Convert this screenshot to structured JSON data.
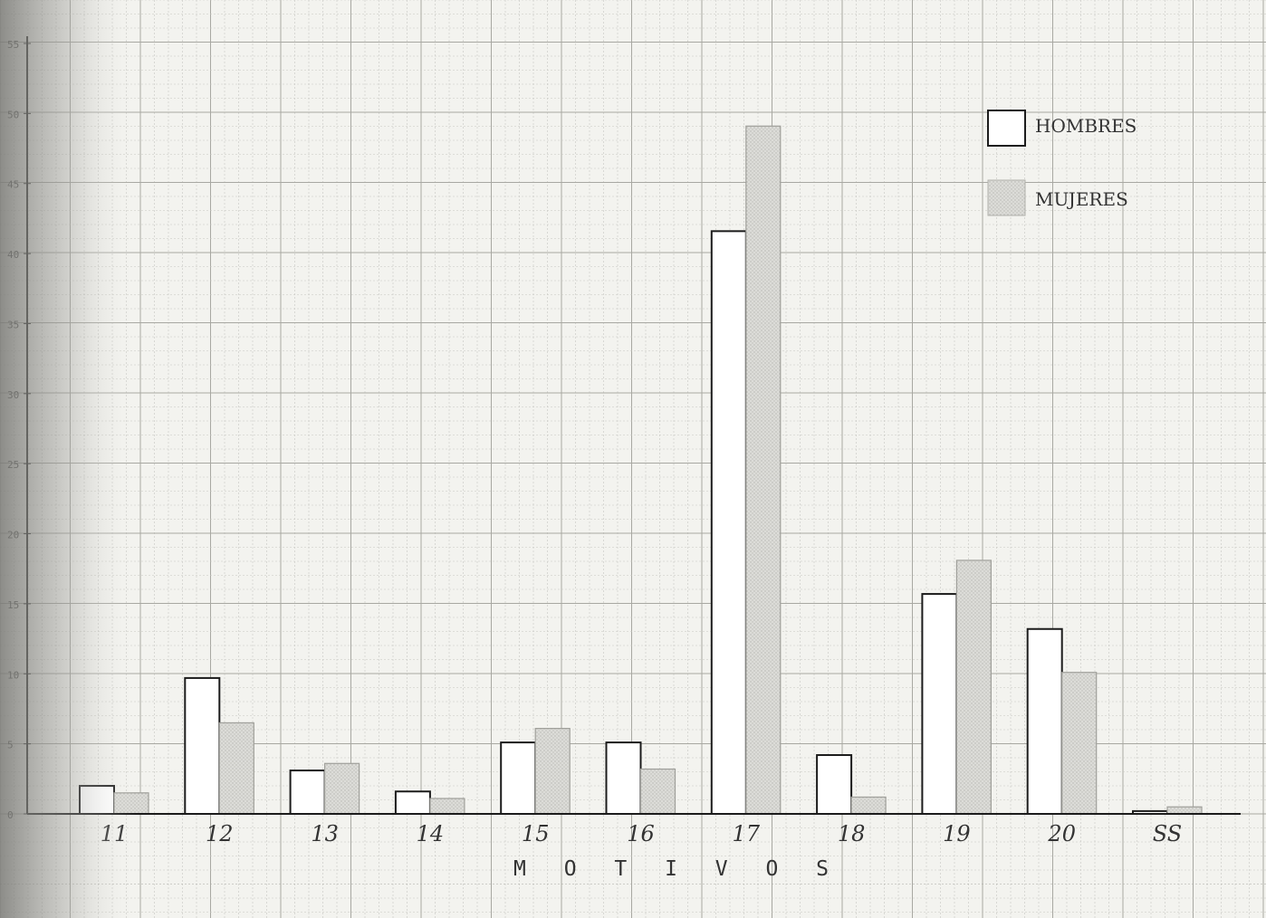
{
  "chart_data": {
    "type": "bar",
    "title": "",
    "xlabel": "M O T I V O S",
    "ylabel": "",
    "categories": [
      "11",
      "12",
      "13",
      "14",
      "15",
      "16",
      "17",
      "18",
      "19",
      "20",
      "SS"
    ],
    "series": [
      {
        "name": "HOMBRES",
        "values": [
          2,
          9.7,
          3.1,
          1.6,
          5.1,
          5.1,
          41.6,
          4.2,
          15.7,
          13.2,
          0.2
        ],
        "fill": "#ffffff"
      },
      {
        "name": "MUJERES",
        "values": [
          1.5,
          6.5,
          3.6,
          1.1,
          6.1,
          3.2,
          49.1,
          1.2,
          18.1,
          10.1,
          0.5
        ],
        "fill": "#d9d9d6"
      }
    ],
    "yticks": [
      "0",
      "5",
      "10",
      "15",
      "20",
      "25",
      "30",
      "35",
      "40",
      "45",
      "50",
      "55"
    ],
    "ylim": [
      0,
      55
    ],
    "grid": true,
    "legend_position": "top-right",
    "colors": {
      "paper": "#f3f3ef",
      "grid_minor": "#c7c7c2",
      "grid_major": "#a8a8a2",
      "ink": "#1c1c1c"
    }
  }
}
